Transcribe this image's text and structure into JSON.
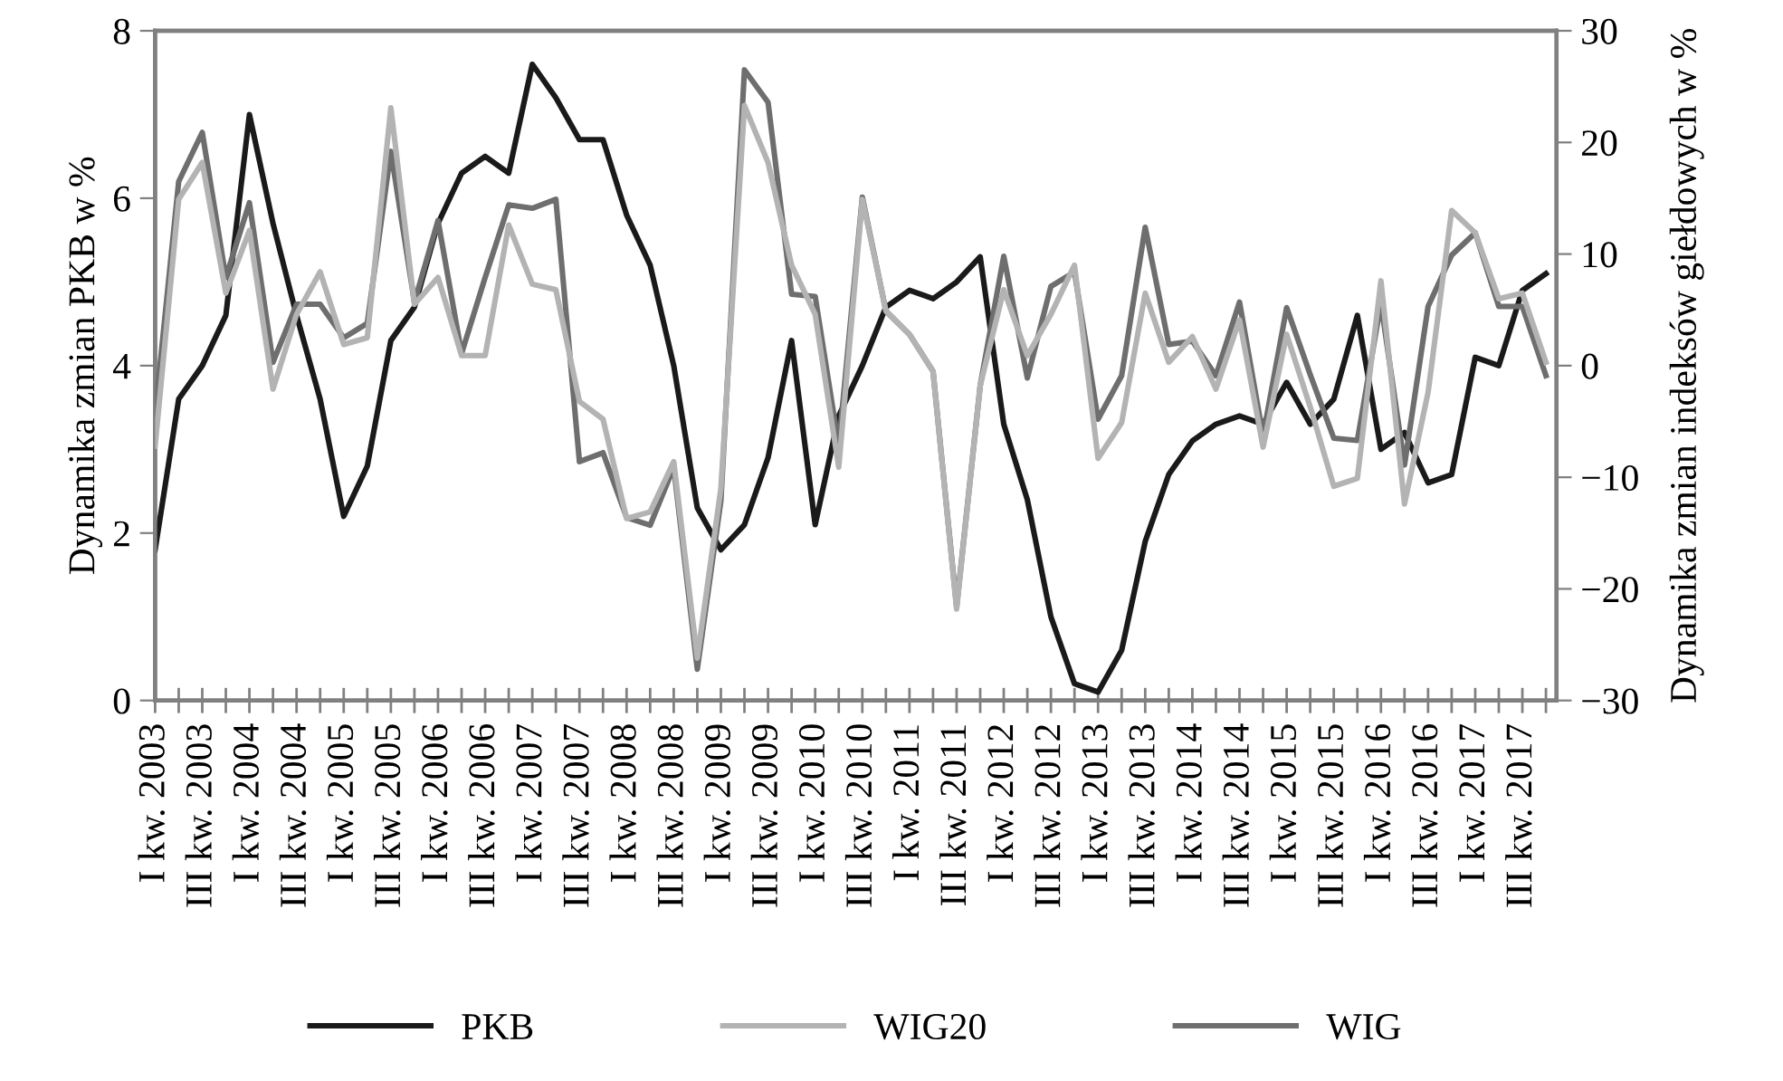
{
  "chart_data": {
    "type": "line",
    "categories": [
      "I kw. 2003",
      null,
      "III kw. 2003",
      null,
      "I kw. 2004",
      null,
      "III kw. 2004",
      null,
      "I kw. 2005",
      null,
      "III kw. 2005",
      null,
      "I kw. 2006",
      null,
      "III kw. 2006",
      null,
      "I kw. 2007",
      null,
      "III kw. 2007",
      null,
      "I kw. 2008",
      null,
      "III kw. 2008",
      null,
      "I kw. 2009",
      null,
      "III kw. 2009",
      null,
      "I kw. 2010",
      null,
      "III kw. 2010",
      null,
      "I kw. 2011",
      null,
      "III kw. 2011",
      null,
      "I kw. 2012",
      null,
      "III kw. 2012",
      null,
      "I kw. 2013",
      null,
      "III kw. 2013",
      null,
      "I kw. 2014",
      null,
      "III kw. 2014",
      null,
      "I kw. 2015",
      null,
      "III kw. 2015",
      null,
      "I kw. 2016",
      null,
      "III kw. 2016",
      null,
      "I kw. 2017",
      null,
      "III kw. 2017",
      null
    ],
    "series": [
      {
        "name": "PKB",
        "color": "#1a1a1a",
        "values": [
          1.8,
          3.6,
          4.0,
          4.6,
          7.0,
          5.7,
          4.6,
          3.6,
          2.2,
          2.8,
          4.3,
          4.7,
          5.7,
          6.3,
          6.5,
          6.3,
          7.6,
          7.2,
          6.7,
          6.7,
          5.8,
          5.2,
          4.0,
          2.3,
          1.8,
          2.1,
          2.9,
          4.3,
          2.1,
          3.4,
          4.0,
          4.7,
          4.9,
          4.8,
          5.0,
          5.3,
          3.3,
          2.4,
          1.0,
          0.2,
          0.1,
          0.6,
          1.9,
          2.7,
          3.1,
          3.3,
          3.4,
          3.3,
          3.8,
          3.3,
          3.6,
          4.6,
          3.0,
          3.2,
          2.6,
          2.7,
          4.1,
          4.0,
          4.9,
          5.1
        ]
      },
      {
        "name": "WIG20",
        "color": "#b3b3b3",
        "axis": "y2",
        "values": [
          -7.2,
          14.9,
          18.2,
          6.5,
          12.1,
          -2.1,
          4.6,
          8.4,
          1.9,
          2.5,
          23.1,
          5.5,
          7.9,
          0.9,
          0.9,
          12.6,
          7.3,
          6.8,
          -3.2,
          -4.8,
          -13.7,
          -13.1,
          -8.6,
          -26.2,
          -11.0,
          23.3,
          18.2,
          9.0,
          4.6,
          -9.1,
          14.9,
          4.9,
          2.8,
          -0.5,
          -21.8,
          -1.8,
          6.8,
          0.9,
          4.6,
          9.0,
          -8.3,
          -5.1,
          6.5,
          0.3,
          2.6,
          -2.1,
          4.1,
          -7.3,
          2.8,
          -3.7,
          -10.8,
          -10.1,
          7.6,
          -12.4,
          -2.4,
          13.9,
          11.9,
          6.0,
          6.5,
          0.3
        ]
      },
      {
        "name": "WIG",
        "color": "#6e6e6e",
        "axis": "y2",
        "values": [
          -4.3,
          16.5,
          20.9,
          7.9,
          14.6,
          0.3,
          5.5,
          5.5,
          2.5,
          3.8,
          19.2,
          5.7,
          13.0,
          1.1,
          7.9,
          14.4,
          14.1,
          14.9,
          -8.6,
          -7.8,
          -13.6,
          -14.3,
          -9.1,
          -27.2,
          -12.1,
          26.5,
          23.6,
          6.4,
          6.2,
          -7.2,
          15.1,
          4.9,
          2.8,
          -0.5,
          -21.6,
          -1.8,
          9.8,
          -1.1,
          7.1,
          8.4,
          -4.8,
          -0.9,
          12.4,
          1.9,
          2.2,
          -0.9,
          5.7,
          -6.3,
          5.2,
          -0.8,
          -6.5,
          -6.7,
          5.6,
          -8.9,
          5.3,
          9.9,
          11.9,
          5.3,
          5.3,
          -0.9
        ]
      }
    ],
    "ylabel": "Dynamika zmian PKB w %",
    "y2label": "Dynamika zmian indeksów giełdowych w %",
    "ylim": [
      0,
      8
    ],
    "yticks": [
      0,
      2,
      4,
      6,
      8
    ],
    "y2lim": [
      -30,
      30
    ],
    "y2ticks": [
      {
        "value": -30,
        "label": "−30"
      },
      {
        "value": -20,
        "label": "−20"
      },
      {
        "value": -10,
        "label": "−10"
      },
      0,
      10,
      20,
      30
    ],
    "grid": false,
    "legend": "bottom",
    "line_style": "solid"
  }
}
